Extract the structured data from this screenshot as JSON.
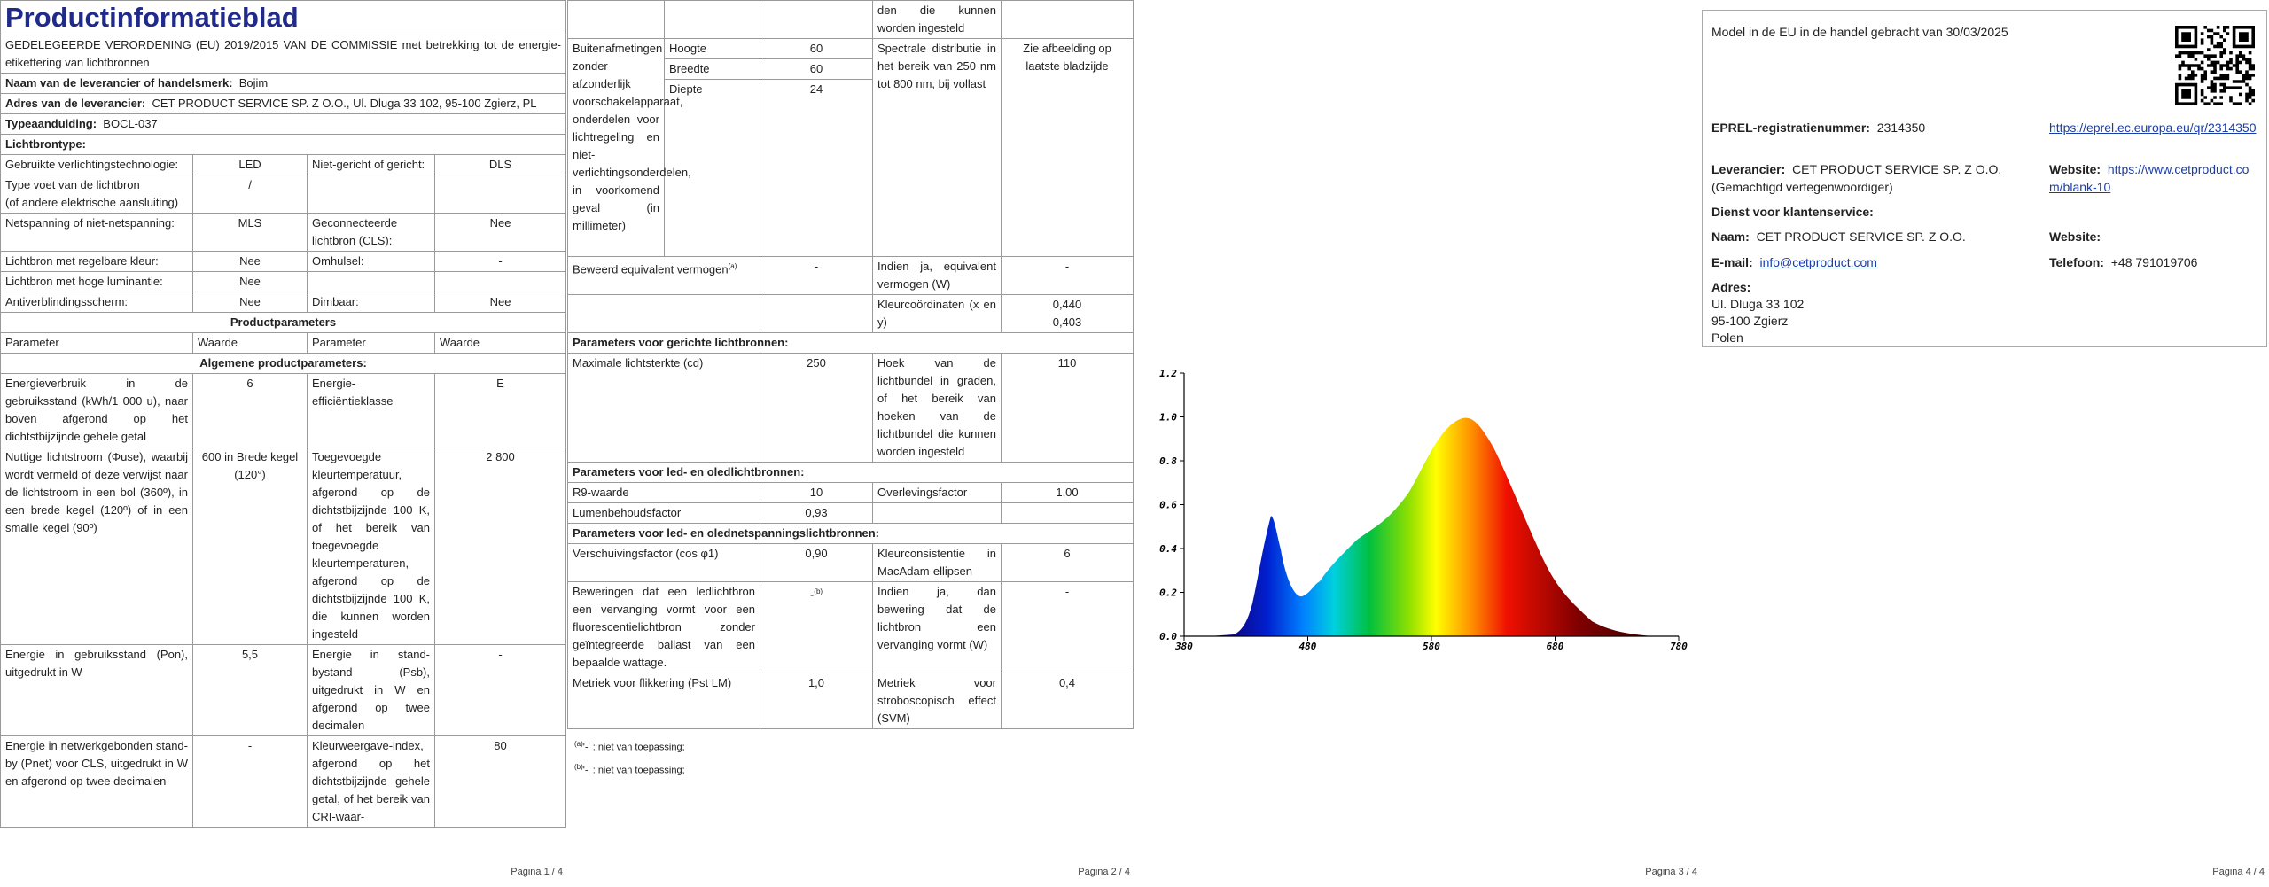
{
  "pages": {
    "footers": [
      "Pagina 1 / 4",
      "Pagina 2 / 4",
      "Pagina 3 / 4",
      "Pagina 4 / 4"
    ]
  },
  "sheet": {
    "title": "Productinformatieblad",
    "regulation": "GEDELEGEERDE VERORDENING (EU) 2019/2015 VAN DE COMMISSIE met betrekking tot de energie-etikettering van lichtbronnen",
    "supplier": {
      "label": "Naam van de leverancier of handelsmerk:",
      "value": "Bojim"
    },
    "address": {
      "label": "Adres van de leverancier:",
      "value": "CET PRODUCT SERVICE SP. Z O.O., Ul. Dluga 33 102, 95-100 Zgierz, PL"
    },
    "model": {
      "label": "Typeaanduiding:",
      "value": "BOCL-037"
    },
    "light_source": {
      "heading": "Lichtbrontype:",
      "rows": [
        {
          "label": "Gebruikte verlichtingstechnologie:",
          "value": "LED",
          "label2": "Niet-gericht of gericht:",
          "value2": "DLS"
        },
        {
          "label": "Type voet van de lichtbron\n(of andere elektrische aansluiting)",
          "value": "/"
        },
        {
          "label": "Netspanning of niet-netspanning:",
          "value": "MLS",
          "label2": "Geconnecteerde lichtbron (CLS):",
          "value2": "Nee"
        },
        {
          "label": "Lichtbron met regelbare kleur:",
          "value": "Nee",
          "label2": "Omhulsel:",
          "value2": "-"
        },
        {
          "label": "Lichtbron met hoge luminantie:",
          "value": "Nee"
        },
        {
          "label": "Antiverblindingsscherm:",
          "value": "Nee",
          "label2": "Dimbaar:",
          "value2": "Nee"
        }
      ]
    },
    "product_parameters": {
      "heading": "Productparameters",
      "columns": [
        "Parameter",
        "Waarde",
        "Parameter",
        "Waarde"
      ],
      "general": {
        "heading": "Algemene productparameters:",
        "rows": [
          {
            "label": "Energieverbruik in de gebruiksstand (kWh/1 000 u), naar boven afgerond op het dichtstbijzijnde gehele getal",
            "value": "6",
            "label2": "Energie-efficiëntieklasse",
            "value2": "E"
          },
          {
            "label": "Nuttige lichtstroom (Φuse), waarbij wordt vermeld of deze verwijst naar de lichtstroom in een bol (360º), in een brede kegel (120º) of in een smalle kegel (90º)",
            "value": "600 in Brede kegel (120°)",
            "label2": "Toegevoegde kleurtemperatuur, afgerond op de dichtstbijzijnde 100 K, of het bereik van toegevoegde kleurtemperaturen, afgerond op de dichtstbijzijnde 100 K, die kunnen worden ingesteld",
            "value2": "2 800"
          },
          {
            "label": "Energie in gebruiksstand (Pon), uitgedrukt in W",
            "value": "5,5",
            "label2": "Energie in stand-bystand (Psb), uitgedrukt in W en afgerond op twee decimalen",
            "value2": "-"
          },
          {
            "label": "Energie in netwerkgebonden stand-by (Pnet) voor CLS, uitgedrukt in W en afgerond op twee decimalen",
            "value": "-",
            "label2": "Kleurweergave-index, afgerond op het dichtstbijzijnde gehele getal, of het bereik van CRI-waar-",
            "value2": "80"
          }
        ]
      }
    }
  },
  "continued": {
    "cont_text": "den die kunnen worden ingesteld",
    "dimensions": {
      "label": "Buitenafmetingen zonder afzonderlijk voorschakelapparaat, onderdelen voor lichtregeling en niet-verlichtingsonderdelen, in voorkomend geval (in millimeter)",
      "items": [
        {
          "name": "Hoogte",
          "value": "60"
        },
        {
          "name": "Breedte",
          "value": "60"
        },
        {
          "name": "Diepte",
          "value": "24"
        }
      ],
      "label2": "Spectrale distributie in het bereik van 250 nm tot 800 nm, bij vollast",
      "value2": "Zie afbeelding op laatste bladzijde"
    },
    "equivalent": {
      "label": "Beweerd equivalent vermogen",
      "note": "(a)",
      "value": "-",
      "label2": "Indien ja, equivalent vermogen (W)",
      "value2": "-"
    },
    "chromaticity": {
      "label2": "Kleurcoördinaten (x en y)",
      "value2": [
        "0,440",
        "0,403"
      ]
    },
    "directional": {
      "heading": "Parameters voor gerichte lichtbronnen:",
      "label": "Maximale lichtsterkte (cd)",
      "value": "250",
      "label2": "Hoek van de lichtbundel in graden, of het bereik van hoeken van de lichtbundel die kunnen worden ingesteld",
      "value2": "110"
    },
    "led": {
      "heading": "Parameters voor led- en oledlichtbronnen:",
      "rows": [
        {
          "label": "R9-waarde",
          "value": "10",
          "label2": "Overlevingsfactor",
          "value2": "1,00"
        },
        {
          "label": "Lumenbehoudsfactor",
          "value": "0,93"
        }
      ]
    },
    "mains": {
      "heading": "Parameters voor led- en olednetspanningslichtbronnen:",
      "rows": [
        {
          "label": "Verschuivingsfactor (cos φ1)",
          "value": "0,90",
          "label2": "Kleurconsistentie in MacAdam-ellipsen",
          "value2": "6"
        },
        {
          "label": "Beweringen dat een ledlichtbron een vervanging vormt voor een fluorescentielichtbron zonder geïntegreerde ballast van een bepaalde wattage.",
          "value": "-",
          "note": "(b)",
          "label2": "Indien ja, dan bewering dat de lichtbron een vervanging vormt (W)",
          "value2": "-"
        },
        {
          "label": "Metriek voor flikkering (Pst LM)",
          "value": "1,0",
          "label2": "Metriek voor stroboscopisch effect (SVM)",
          "value2": "0,4"
        }
      ]
    },
    "footnotes": [
      {
        "mark": "(a)",
        "text": "'-' : niet van toepassing;"
      },
      {
        "mark": "(b)",
        "text": "'-' : niet van toepassing;"
      }
    ]
  },
  "spectrum": {
    "yticks": [
      "1.2",
      "1.0",
      "0.8",
      "0.6",
      "0.4",
      "0.2",
      "0.0"
    ],
    "xticks": [
      "380",
      "480",
      "580",
      "680",
      "780"
    ]
  },
  "contact": {
    "placed": "Model in de EU in de handel gebracht van 30/03/2025",
    "eprel": {
      "label": "EPREL-registratienummer:",
      "value": "2314350",
      "link": "https://eprel.ec.europa.eu/qr/2314350"
    },
    "supplier": {
      "label": "Leverancier:",
      "value": "CET PRODUCT SERVICE SP. Z O.O. (Gemachtigd vertegenwoordiger)",
      "website_label": "Website:",
      "website": "https://www.cetproduct.com/blank-10"
    },
    "service": {
      "heading": "Dienst voor klantenservice:",
      "name_label": "Naam:",
      "name": "CET PRODUCT SERVICE SP. Z O.O.",
      "website_label": "Website:",
      "email_label": "E-mail:",
      "email": "info@cetproduct.com",
      "phone_label": "Telefoon:",
      "phone": "+48 791019706",
      "address_label": "Adres:",
      "address": [
        "Ul. Dluga 33 102",
        "95-100 Zgierz",
        "Polen"
      ]
    }
  }
}
